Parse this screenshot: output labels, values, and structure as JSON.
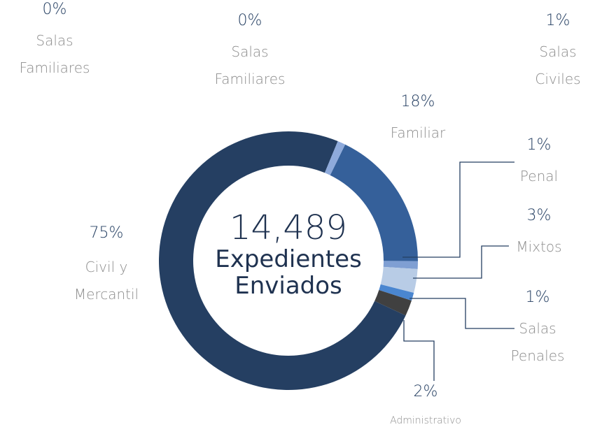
{
  "chart_data": {
    "type": "donut",
    "center": {
      "value": "14,489",
      "label": "Expedientes Enviados"
    },
    "categories": [
      "Familiar",
      "Penal",
      "Mixtos",
      "Salas Penales",
      "Administrativo",
      "Civil y Mercantil",
      "Salas Civiles",
      "Salas Familiares",
      "Salas Familiares"
    ],
    "values": [
      18,
      1,
      3,
      1,
      2,
      75,
      1,
      0,
      0
    ],
    "value_labels": [
      "18%",
      "1%",
      "3%",
      "1%",
      "2%",
      "75%",
      "1%",
      "0%",
      "0%"
    ],
    "colors": [
      "#35609a",
      "#7f9fd3",
      "#b8cce6",
      "#4a86d0",
      "#404040",
      "#253f62",
      "#8eaadb",
      "#dde6f2",
      "#dde6f2"
    ]
  }
}
